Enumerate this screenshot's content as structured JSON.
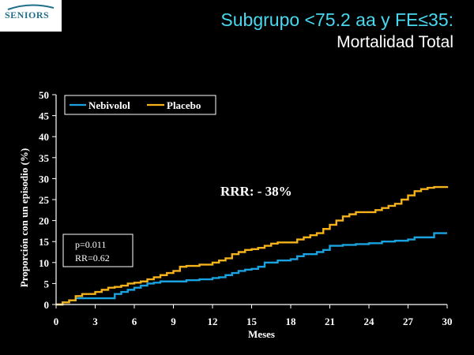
{
  "header": {
    "logo": "SENIORS",
    "title_line1": "Subgrupo <75.2 aa y FE≤35:",
    "title_line2": "Mortalidad Total"
  },
  "colors": {
    "nebivolol": "#1aa3e0",
    "placebo": "#f5b21a",
    "background": "#000000",
    "title_accent": "#48d8f0"
  },
  "chart_data": {
    "type": "line",
    "xlabel": "Meses",
    "ylabel": "Proporción con un episodio (%)",
    "xlim": [
      0,
      30
    ],
    "ylim": [
      0,
      50
    ],
    "x_ticks": [
      0,
      3,
      6,
      9,
      12,
      15,
      18,
      21,
      24,
      27,
      30
    ],
    "y_ticks": [
      0,
      5,
      10,
      15,
      20,
      25,
      30,
      35,
      40,
      45,
      50
    ],
    "grid": false,
    "legend_position": "top-left",
    "series": [
      {
        "name": "Nebivolol",
        "color": "#1aa3e0",
        "step": true,
        "x": [
          0,
          0.5,
          1.0,
          1.5,
          2.0,
          3.0,
          4.0,
          4.5,
          5.0,
          5.5,
          6.0,
          6.5,
          7.0,
          7.5,
          8.0,
          9.0,
          10.0,
          11.0,
          12.0,
          12.5,
          13.0,
          13.5,
          14.0,
          14.5,
          15.0,
          15.5,
          16.0,
          17.0,
          18.0,
          18.5,
          19.0,
          20.0,
          20.5,
          21.0,
          22.0,
          23.0,
          24.0,
          25.0,
          26.0,
          27.0,
          27.5,
          28.0,
          29.0,
          30.0
        ],
        "y": [
          0,
          0.5,
          1.0,
          1.5,
          1.5,
          1.5,
          1.5,
          2.5,
          3.0,
          3.5,
          4.0,
          4.5,
          5.0,
          5.2,
          5.5,
          5.5,
          5.8,
          6.0,
          6.3,
          6.5,
          7.0,
          7.5,
          8.0,
          8.3,
          8.5,
          9.0,
          10.0,
          10.5,
          10.8,
          11.5,
          12.0,
          12.5,
          13.0,
          14.0,
          14.2,
          14.4,
          14.6,
          15.0,
          15.2,
          15.5,
          16.0,
          16.0,
          17.0,
          17.0
        ]
      },
      {
        "name": "Placebo",
        "color": "#f5b21a",
        "step": true,
        "x": [
          0,
          0.5,
          1.0,
          1.5,
          2.0,
          2.5,
          3.0,
          3.5,
          4.0,
          4.5,
          5.0,
          5.5,
          6.0,
          6.5,
          7.0,
          7.5,
          8.0,
          8.5,
          9.0,
          9.5,
          10.0,
          11.0,
          12.0,
          12.5,
          13.0,
          13.5,
          14.0,
          14.5,
          15.0,
          15.5,
          16.0,
          16.5,
          17.0,
          18.0,
          18.5,
          19.0,
          19.5,
          20.0,
          20.5,
          21.0,
          21.5,
          22.0,
          22.5,
          23.0,
          24.0,
          24.5,
          25.0,
          25.5,
          26.0,
          26.5,
          27.0,
          27.5,
          28.0,
          28.5,
          29.0,
          30.0
        ],
        "y": [
          0,
          0.5,
          1.0,
          2.0,
          2.5,
          2.5,
          3.0,
          3.5,
          4.0,
          4.2,
          4.5,
          5.0,
          5.2,
          5.5,
          6.0,
          6.5,
          7.0,
          7.5,
          8.0,
          9.0,
          9.2,
          9.5,
          10.0,
          10.5,
          11.0,
          12.0,
          12.5,
          13.0,
          13.2,
          13.5,
          14.0,
          14.5,
          14.8,
          14.8,
          15.5,
          16.0,
          16.5,
          17.0,
          18.0,
          19.0,
          20.0,
          21.0,
          21.5,
          22.0,
          22.0,
          22.5,
          23.0,
          23.5,
          24.0,
          25.0,
          26.0,
          27.0,
          27.5,
          27.8,
          28.0,
          28.2
        ]
      }
    ],
    "annotations": {
      "rrr": "RRR: - 38%",
      "p_value": "p=0.011",
      "rr": "RR=0.62"
    }
  }
}
